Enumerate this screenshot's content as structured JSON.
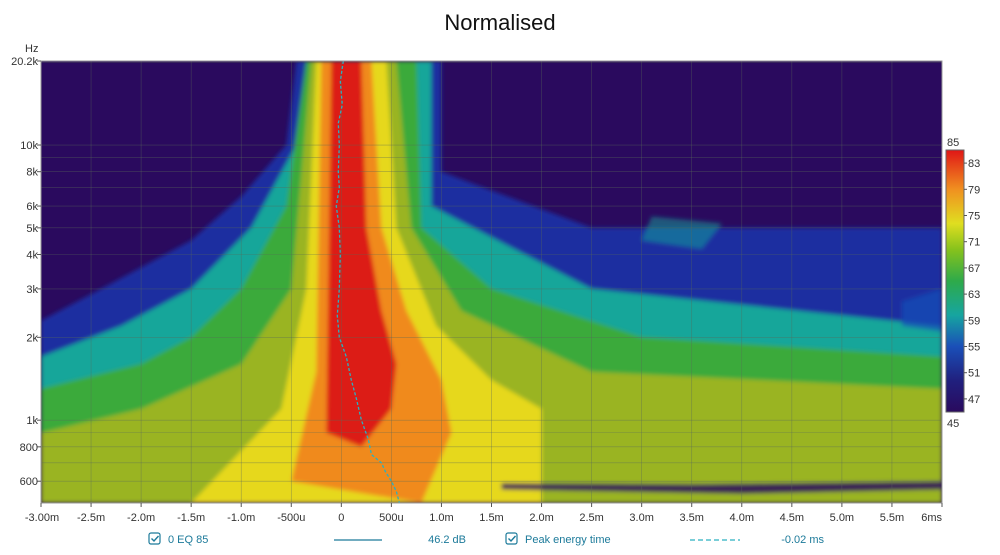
{
  "chart_data": {
    "type": "heatmap",
    "title": "Normalised",
    "y_unit": "Hz",
    "x_unit": "ms",
    "x_range_ms": [
      -3.0,
      6.0
    ],
    "y_range_hz": [
      500,
      20200
    ],
    "y_scale": "log",
    "grid": true,
    "x_ticks": [
      {
        "v": -3.0,
        "label": "-3.00m"
      },
      {
        "v": -2.5,
        "label": "-2.5m"
      },
      {
        "v": -2.0,
        "label": "-2.0m"
      },
      {
        "v": -1.5,
        "label": "-1.5m"
      },
      {
        "v": -1.0,
        "label": "-1.0m"
      },
      {
        "v": -0.5,
        "label": "-500u"
      },
      {
        "v": 0.0,
        "label": "0"
      },
      {
        "v": 0.5,
        "label": "500u"
      },
      {
        "v": 1.0,
        "label": "1.0m"
      },
      {
        "v": 1.5,
        "label": "1.5m"
      },
      {
        "v": 2.0,
        "label": "2.0m"
      },
      {
        "v": 2.5,
        "label": "2.5m"
      },
      {
        "v": 3.0,
        "label": "3.0m"
      },
      {
        "v": 3.5,
        "label": "3.5m"
      },
      {
        "v": 4.0,
        "label": "4.0m"
      },
      {
        "v": 4.5,
        "label": "4.5m"
      },
      {
        "v": 5.0,
        "label": "5.0m"
      },
      {
        "v": 5.5,
        "label": "5.5m"
      },
      {
        "v": 6.0,
        "label": "6ms"
      }
    ],
    "y_ticks": [
      {
        "v": 20200,
        "label": "20.2k"
      },
      {
        "v": 10000,
        "label": "10k"
      },
      {
        "v": 8000,
        "label": "8k"
      },
      {
        "v": 6000,
        "label": "6k"
      },
      {
        "v": 5000,
        "label": "5k"
      },
      {
        "v": 4000,
        "label": "4k"
      },
      {
        "v": 3000,
        "label": "3k"
      },
      {
        "v": 2000,
        "label": "2k"
      },
      {
        "v": 1000,
        "label": "1k"
      },
      {
        "v": 800,
        "label": "800"
      },
      {
        "v": 600,
        "label": "600"
      }
    ],
    "colorbar": {
      "min": 45,
      "max": 85,
      "labels": [
        "85",
        "83",
        "79",
        "75",
        "71",
        "67",
        "63",
        "59",
        "55",
        "51",
        "47",
        "45"
      ],
      "values": [
        85,
        83,
        79,
        75,
        71,
        67,
        63,
        59,
        55,
        51,
        47,
        45
      ]
    },
    "peak_energy_time": {
      "name": "Peak energy time",
      "color": "#2ab0c0",
      "points": [
        {
          "f": 20200,
          "t": 0.02
        },
        {
          "f": 17000,
          "t": -0.01
        },
        {
          "f": 14000,
          "t": 0.01
        },
        {
          "f": 12000,
          "t": -0.03
        },
        {
          "f": 10000,
          "t": -0.02
        },
        {
          "f": 8000,
          "t": -0.03
        },
        {
          "f": 7000,
          "t": -0.02
        },
        {
          "f": 6000,
          "t": -0.05
        },
        {
          "f": 5000,
          "t": -0.02
        },
        {
          "f": 4000,
          "t": -0.01
        },
        {
          "f": 3000,
          "t": -0.02
        },
        {
          "f": 2400,
          "t": -0.04
        },
        {
          "f": 2000,
          "t": -0.02
        },
        {
          "f": 1700,
          "t": 0.05
        },
        {
          "f": 1400,
          "t": 0.1
        },
        {
          "f": 1200,
          "t": 0.15
        },
        {
          "f": 1000,
          "t": 0.2
        },
        {
          "f": 850,
          "t": 0.27
        },
        {
          "f": 750,
          "t": 0.3
        },
        {
          "f": 700,
          "t": 0.4
        },
        {
          "f": 650,
          "t": 0.44
        },
        {
          "f": 600,
          "t": 0.5
        },
        {
          "f": 550,
          "t": 0.55
        },
        {
          "f": 500,
          "t": 0.58
        }
      ]
    }
  },
  "legend": {
    "trace_label": "0 EQ 85",
    "trace_value": "46.2 dB",
    "peak_label": "Peak energy time",
    "peak_value": "-0.02 ms"
  },
  "colors": {
    "background_low": "#2a0a5e",
    "trace_line": "#1c7a9a",
    "peak_line": "#2ab0c0"
  }
}
